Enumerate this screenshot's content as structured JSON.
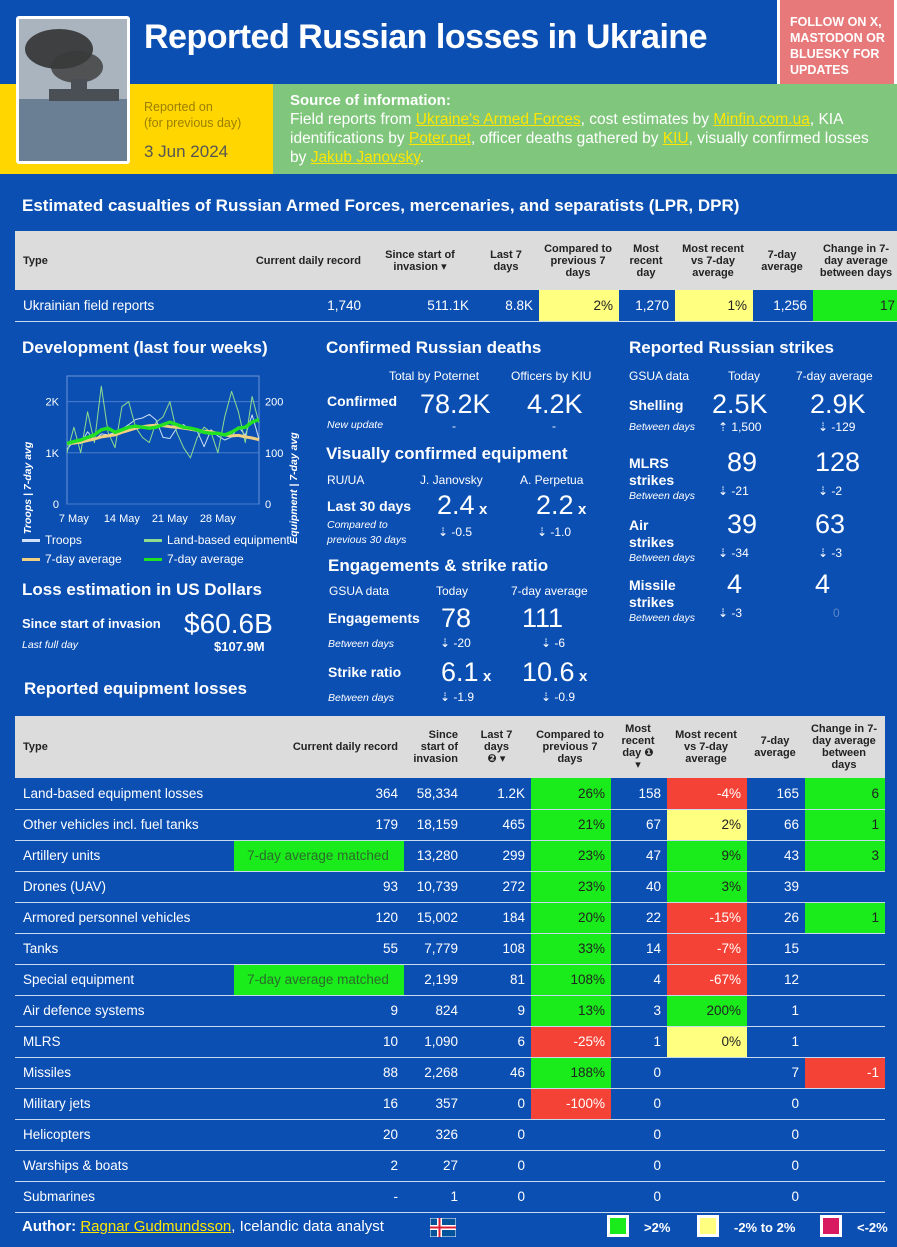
{
  "header": {
    "title": "Reported Russian losses in Ukraine",
    "follow": "FOLLOW ON X, MASTODON OR BLUESKY FOR UPDATES",
    "reported_on": "Reported on",
    "reported_sub": "(for previous day)",
    "date": "3 Jun 2024",
    "source_title": "Source of information:",
    "source": {
      "t1": "Field reports from ",
      "l1": "Ukraine's Armed Forces",
      "t2": ", cost estimates by ",
      "l2": "Minfin.com.ua",
      "t3": ", KIA identifications by ",
      "l3": "Poter.net",
      "t4": ", officer deaths gathered by ",
      "l4": "KIU",
      "t5": ", visually confirmed losses by ",
      "l5": "Jakub Janovsky",
      "t6": "."
    }
  },
  "casualties": {
    "title": "Estimated casualties of Russian Armed Forces, mercenaries, and separatists (LPR, DPR)",
    "headers": [
      "Type",
      "Current daily record",
      "Since start of invasion",
      "Last 7 days",
      "Compared to previous 7 days",
      "Most recent day",
      "Most recent vs 7-day average",
      "7-day average",
      "Change in 7-day average between days"
    ],
    "row": [
      "Ukrainian field reports",
      "1,740",
      "511.1K",
      "8.8K",
      "2%",
      "1,270",
      "1%",
      "1,256",
      "17"
    ]
  },
  "development": {
    "title": "Development (last four weeks)",
    "left_axis": "Troops | 7-day avg",
    "right_axis": "Equipment | 7-day avg",
    "left_ticks": [
      "2K",
      "1K",
      "0"
    ],
    "right_ticks": [
      "200",
      "100",
      "0"
    ],
    "x_ticks": [
      "7 May",
      "14 May",
      "21 May",
      "28 May"
    ],
    "legend": [
      "Troops",
      "Land-based equipment",
      "7-day average",
      "7-day average"
    ]
  },
  "chart_data": {
    "type": "line",
    "x": [
      "6 May",
      "7 May",
      "8 May",
      "9 May",
      "10 May",
      "11 May",
      "12 May",
      "13 May",
      "14 May",
      "15 May",
      "16 May",
      "17 May",
      "18 May",
      "19 May",
      "20 May",
      "21 May",
      "22 May",
      "23 May",
      "24 May",
      "25 May",
      "26 May",
      "27 May",
      "28 May",
      "29 May",
      "30 May",
      "31 May",
      "1 Jun",
      "2 Jun",
      "3 Jun"
    ],
    "series": [
      {
        "name": "Troops",
        "axis": "left",
        "values": [
          1070,
          1230,
          1180,
          1410,
          1250,
          1370,
          1350,
          1400,
          1460,
          1550,
          1650,
          1680,
          1750,
          1640,
          1300,
          1280,
          1480,
          1550,
          1440,
          1420,
          1120,
          1450,
          1330,
          1250,
          1310,
          1510,
          1340,
          1740,
          1270
        ]
      },
      {
        "name": "7-day average",
        "axis": "left",
        "values": [
          1180,
          1190,
          1210,
          1240,
          1270,
          1310,
          1330,
          1350,
          1400,
          1440,
          1480,
          1510,
          1530,
          1540,
          1530,
          1510,
          1500,
          1480,
          1460,
          1440,
          1420,
          1410,
          1380,
          1350,
          1330,
          1340,
          1310,
          1290,
          1256
        ]
      },
      {
        "name": "Land-based equipment",
        "axis": "right",
        "values": [
          100,
          150,
          100,
          180,
          120,
          230,
          140,
          110,
          190,
          200,
          150,
          130,
          120,
          160,
          170,
          200,
          140,
          110,
          90,
          130,
          150,
          140,
          100,
          170,
          220,
          180,
          120,
          210,
          158
        ]
      },
      {
        "name": "7-day average",
        "axis": "right",
        "values": [
          118,
          122,
          125,
          130,
          135,
          145,
          148,
          140,
          145,
          150,
          152,
          150,
          148,
          150,
          155,
          160,
          155,
          150,
          148,
          145,
          140,
          138,
          138,
          135,
          140,
          148,
          150,
          160,
          165
        ]
      }
    ],
    "ylim_left": [
      0,
      2500
    ],
    "ylim_right": [
      0,
      250
    ],
    "colors": {
      "Troops": "#cfe0f7",
      "Land-based equipment": "#8fdc8f",
      "7-day average troops": "#f0d080",
      "7-day average equipment": "#22e022"
    }
  },
  "deaths": {
    "title": "Confirmed Russian deaths",
    "h1": "Total by Poternet",
    "h2": "Officers by KIU",
    "label": "Confirmed",
    "sub": "New update",
    "v1": "78.2K",
    "v2": "4.2K",
    "d1": "-",
    "d2": "-"
  },
  "visual": {
    "title": "Visually confirmed equipment",
    "h0": "RU/UA",
    "h1": "J. Janovsky",
    "h2": "A. Perpetua",
    "label": "Last 30 days",
    "sub": "Compared to previous 30 days",
    "v1": "2.4",
    "v2": "2.2",
    "x": "x",
    "d1": "-0.5",
    "d2": "-1.0"
  },
  "engagements": {
    "title": "Engagements & strike ratio",
    "h0": "GSUA data",
    "h1": "Today",
    "h2": "7-day average",
    "rows": [
      {
        "label": "Engagements",
        "sub": "Between days",
        "v1": "78",
        "v2": "111",
        "d1": "-20",
        "d2": "-6",
        "x": ""
      },
      {
        "label": "Strike ratio",
        "sub": "Between days",
        "v1": "6.1",
        "v2": "10.6",
        "d1": "-1.9",
        "d2": "-0.9",
        "x": "x"
      }
    ]
  },
  "strikes": {
    "title": "Reported Russian strikes",
    "h0": "GSUA data",
    "h1": "Today",
    "h2": "7-day average",
    "rows": [
      {
        "l1": "Shelling",
        "l2": "",
        "sub": "Between days",
        "v1": "2.5K",
        "v2": "2.9K",
        "d1": "1,500",
        "d2": "-129",
        "up": true
      },
      {
        "l1": "MLRS",
        "l2": "strikes",
        "sub": "Between days",
        "v1": "89",
        "v2": "128",
        "d1": "-21",
        "d2": "-2",
        "up": false
      },
      {
        "l1": "Air",
        "l2": "strikes",
        "sub": "Between days",
        "v1": "39",
        "v2": "63",
        "d1": "-34",
        "d2": "-3",
        "up": false
      },
      {
        "l1": "Missile",
        "l2": "strikes",
        "sub": "Between days",
        "v1": "4",
        "v2": "4",
        "d1": "-3",
        "d2": "0",
        "up": false
      }
    ]
  },
  "usd": {
    "title": "Loss estimation in US Dollars",
    "label": "Since start of invasion",
    "sub": "Last full day",
    "value": "$60.6B",
    "daily": "$107.9M"
  },
  "equipment": {
    "title": "Reported equipment losses",
    "headers": [
      "Type",
      "Current daily record",
      "Since start of invasion",
      "Last 7 days",
      "Compared to previous 7 days",
      "Most recent day",
      "Most recent vs 7-day average",
      "7-day average",
      "Change in 7-day average between days"
    ],
    "rows": [
      {
        "c": [
          "Land-based equipment losses",
          "364",
          "58,334",
          "1.2K",
          "26%",
          "158",
          "-4%",
          "165",
          "6"
        ],
        "k": [
          "",
          "",
          "",
          "",
          "g",
          "",
          "r",
          "",
          "g"
        ]
      },
      {
        "c": [
          "Other vehicles incl. fuel tanks",
          "179",
          "18,159",
          "465",
          "21%",
          "67",
          "2%",
          "66",
          "1"
        ],
        "k": [
          "",
          "",
          "",
          "",
          "g",
          "",
          "y",
          "",
          "g"
        ]
      },
      {
        "c": [
          "Artillery units",
          "7-day average matched",
          "13,280",
          "299",
          "23%",
          "47",
          "9%",
          "43",
          "3"
        ],
        "k": [
          "",
          "m",
          "",
          "",
          "g",
          "",
          "g",
          "",
          "g"
        ]
      },
      {
        "c": [
          "Drones (UAV)",
          "93",
          "10,739",
          "272",
          "23%",
          "40",
          "3%",
          "39",
          ""
        ],
        "k": [
          "",
          "",
          "",
          "",
          "g",
          "",
          "g",
          "",
          ""
        ]
      },
      {
        "c": [
          "Armored personnel vehicles",
          "120",
          "15,002",
          "184",
          "20%",
          "22",
          "-15%",
          "26",
          "1"
        ],
        "k": [
          "",
          "",
          "",
          "",
          "g",
          "",
          "r",
          "",
          "g"
        ]
      },
      {
        "c": [
          "Tanks",
          "55",
          "7,779",
          "108",
          "33%",
          "14",
          "-7%",
          "15",
          ""
        ],
        "k": [
          "",
          "",
          "",
          "",
          "g",
          "",
          "r",
          "",
          ""
        ]
      },
      {
        "c": [
          "Special equipment",
          "7-day average matched",
          "2,199",
          "81",
          "108%",
          "4",
          "-67%",
          "12",
          ""
        ],
        "k": [
          "",
          "m",
          "",
          "",
          "g",
          "",
          "r",
          "",
          ""
        ]
      },
      {
        "c": [
          "Air defence systems",
          "9",
          "824",
          "9",
          "13%",
          "3",
          "200%",
          "1",
          ""
        ],
        "k": [
          "",
          "",
          "",
          "",
          "g",
          "",
          "g",
          "",
          ""
        ]
      },
      {
        "c": [
          "MLRS",
          "10",
          "1,090",
          "6",
          "-25%",
          "1",
          "0%",
          "1",
          ""
        ],
        "k": [
          "",
          "",
          "",
          "",
          "r",
          "",
          "y",
          "",
          ""
        ]
      },
      {
        "c": [
          "Missiles",
          "88",
          "2,268",
          "46",
          "188%",
          "0",
          "",
          "7",
          "-1"
        ],
        "k": [
          "",
          "",
          "",
          "",
          "g",
          "",
          "",
          "",
          "r"
        ]
      },
      {
        "c": [
          "Military jets",
          "16",
          "357",
          "0",
          "-100%",
          "0",
          "",
          "0",
          ""
        ],
        "k": [
          "",
          "",
          "",
          "",
          "r",
          "",
          "",
          "",
          ""
        ]
      },
      {
        "c": [
          "Helicopters",
          "20",
          "326",
          "0",
          "",
          "0",
          "",
          "0",
          ""
        ],
        "k": [
          "",
          "",
          "",
          "",
          "",
          "",
          "",
          "",
          ""
        ]
      },
      {
        "c": [
          "Warships & boats",
          "2",
          "27",
          "0",
          "",
          "0",
          "",
          "0",
          ""
        ],
        "k": [
          "",
          "",
          "",
          "",
          "",
          "",
          "",
          "",
          ""
        ]
      },
      {
        "c": [
          "Submarines",
          "-",
          "1",
          "0",
          "",
          "0",
          "",
          "0",
          ""
        ],
        "k": [
          "",
          "",
          "",
          "",
          "",
          "",
          "",
          "",
          ""
        ]
      }
    ]
  },
  "footer": {
    "author_label": "Author:",
    "author_name": "Ragnar Gudmundsson",
    "author_desc": ", Icelandic data analyst",
    "legend": [
      ">2%",
      "-2% to 2%",
      "<-2%"
    ],
    "legend_colors": [
      "#1aeb1a",
      "#ffff80",
      "#d81b60"
    ]
  }
}
